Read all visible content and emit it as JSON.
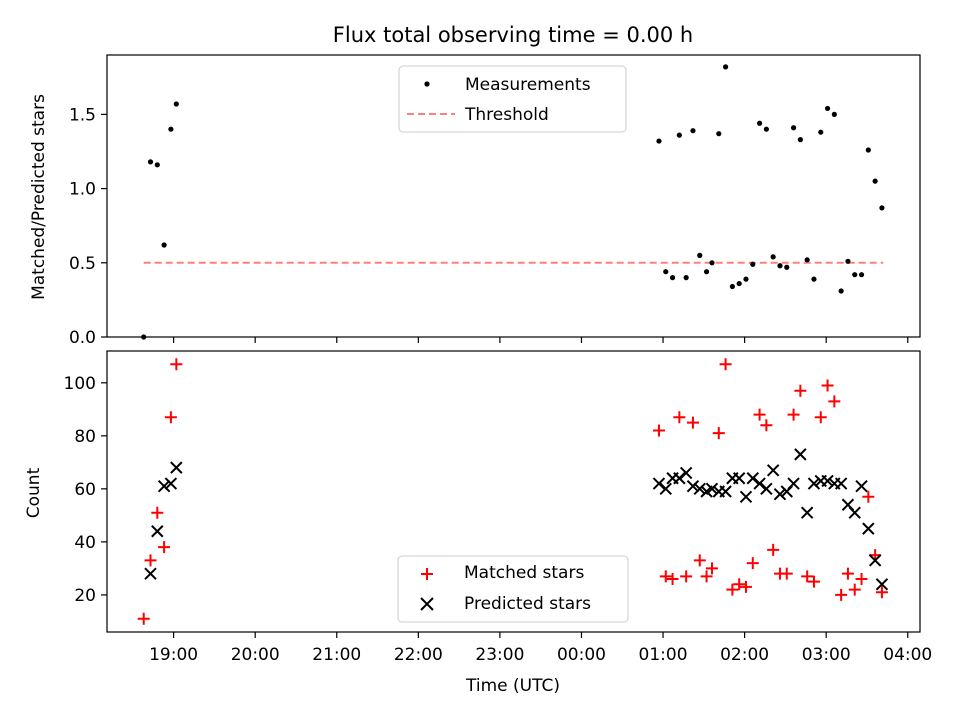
{
  "chart_data": [
    {
      "type": "scatter",
      "title": "Flux total observing time = 0.00 h",
      "ylabel": "Matched/Predicted stars",
      "xlabel": "",
      "xlim": [
        "18:11",
        "04:09"
      ],
      "ylim": [
        0,
        1.9
      ],
      "yticks": [
        "0.0",
        "0.5",
        "1.0",
        "1.5"
      ],
      "legend": {
        "position": "top-center",
        "entries": [
          "Measurements",
          "Threshold"
        ]
      },
      "threshold": {
        "name": "Threshold",
        "value": 0.5,
        "x_range": [
          "18:38",
          "03:42"
        ],
        "color": "#ff7f7f"
      },
      "series": [
        {
          "name": "Measurements",
          "color": "#000000",
          "points": [
            [
              "18:38",
              0.0
            ],
            [
              "18:43",
              1.18
            ],
            [
              "18:48",
              1.16
            ],
            [
              "18:53",
              0.62
            ],
            [
              "18:58",
              1.4
            ],
            [
              "19:02",
              1.57
            ],
            [
              "00:57",
              1.32
            ],
            [
              "01:02",
              0.44
            ],
            [
              "01:07",
              0.4
            ],
            [
              "01:12",
              1.36
            ],
            [
              "01:17",
              0.4
            ],
            [
              "01:22",
              1.39
            ],
            [
              "01:27",
              0.55
            ],
            [
              "01:32",
              0.44
            ],
            [
              "01:36",
              0.5
            ],
            [
              "01:41",
              1.37
            ],
            [
              "01:46",
              1.82
            ],
            [
              "01:51",
              0.34
            ],
            [
              "01:56",
              0.36
            ],
            [
              "02:01",
              0.39
            ],
            [
              "02:06",
              0.49
            ],
            [
              "02:11",
              1.44
            ],
            [
              "02:16",
              1.4
            ],
            [
              "02:21",
              0.54
            ],
            [
              "02:26",
              0.48
            ],
            [
              "02:31",
              0.47
            ],
            [
              "02:36",
              1.41
            ],
            [
              "02:41",
              1.33
            ],
            [
              "02:46",
              0.52
            ],
            [
              "02:51",
              0.39
            ],
            [
              "02:56",
              1.38
            ],
            [
              "03:01",
              1.54
            ],
            [
              "03:06",
              1.5
            ],
            [
              "03:11",
              0.31
            ],
            [
              "03:16",
              0.51
            ],
            [
              "03:21",
              0.42
            ],
            [
              "03:26",
              0.42
            ],
            [
              "03:31",
              1.26
            ],
            [
              "03:36",
              1.05
            ],
            [
              "03:41",
              0.87
            ]
          ]
        }
      ]
    },
    {
      "type": "scatter",
      "title": "",
      "ylabel": "Count",
      "xlabel": "Time (UTC)",
      "xlim": [
        "18:11",
        "04:09"
      ],
      "ylim": [
        6,
        112
      ],
      "yticks": [
        "20",
        "40",
        "60",
        "80",
        "100"
      ],
      "xticks": [
        "19:00",
        "20:00",
        "21:00",
        "22:00",
        "23:00",
        "00:00",
        "01:00",
        "02:00",
        "03:00",
        "04:00"
      ],
      "legend": {
        "position": "bottom-center",
        "entries": [
          "Matched stars",
          "Predicted stars"
        ]
      },
      "series": [
        {
          "name": "Matched stars",
          "marker": "+",
          "color": "#ff0000",
          "points": [
            [
              "18:38",
              11
            ],
            [
              "18:43",
              33
            ],
            [
              "18:48",
              51
            ],
            [
              "18:53",
              38
            ],
            [
              "18:58",
              87
            ],
            [
              "19:02",
              107
            ],
            [
              "00:57",
              82
            ],
            [
              "01:02",
              27
            ],
            [
              "01:07",
              26
            ],
            [
              "01:12",
              87
            ],
            [
              "01:17",
              27
            ],
            [
              "01:22",
              85
            ],
            [
              "01:27",
              33
            ],
            [
              "01:32",
              27
            ],
            [
              "01:36",
              30
            ],
            [
              "01:41",
              81
            ],
            [
              "01:46",
              107
            ],
            [
              "01:51",
              22
            ],
            [
              "01:56",
              24
            ],
            [
              "02:01",
              23
            ],
            [
              "02:06",
              32
            ],
            [
              "02:11",
              88
            ],
            [
              "02:16",
              84
            ],
            [
              "02:21",
              37
            ],
            [
              "02:26",
              28
            ],
            [
              "02:31",
              28
            ],
            [
              "02:36",
              88
            ],
            [
              "02:41",
              97
            ],
            [
              "02:46",
              27
            ],
            [
              "02:51",
              25
            ],
            [
              "02:56",
              87
            ],
            [
              "03:01",
              99
            ],
            [
              "03:06",
              93
            ],
            [
              "03:11",
              20
            ],
            [
              "03:16",
              28
            ],
            [
              "03:21",
              22
            ],
            [
              "03:26",
              26
            ],
            [
              "03:31",
              57
            ],
            [
              "03:36",
              35
            ],
            [
              "03:41",
              21
            ]
          ]
        },
        {
          "name": "Predicted stars",
          "marker": "x",
          "color": "#000000",
          "points": [
            [
              "18:43",
              28
            ],
            [
              "18:48",
              44
            ],
            [
              "18:53",
              61
            ],
            [
              "18:58",
              62
            ],
            [
              "19:02",
              68
            ],
            [
              "00:57",
              62
            ],
            [
              "01:02",
              60
            ],
            [
              "01:07",
              64
            ],
            [
              "01:12",
              64
            ],
            [
              "01:17",
              66
            ],
            [
              "01:22",
              61
            ],
            [
              "01:27",
              60
            ],
            [
              "01:32",
              59
            ],
            [
              "01:36",
              60
            ],
            [
              "01:41",
              59
            ],
            [
              "01:46",
              59
            ],
            [
              "01:51",
              64
            ],
            [
              "01:56",
              64
            ],
            [
              "02:01",
              57
            ],
            [
              "02:06",
              64
            ],
            [
              "02:11",
              62
            ],
            [
              "02:16",
              60
            ],
            [
              "02:21",
              67
            ],
            [
              "02:26",
              58
            ],
            [
              "02:31",
              59
            ],
            [
              "02:36",
              62
            ],
            [
              "02:41",
              73
            ],
            [
              "02:46",
              51
            ],
            [
              "02:51",
              62
            ],
            [
              "02:56",
              63
            ],
            [
              "03:01",
              63
            ],
            [
              "03:06",
              62
            ],
            [
              "03:11",
              62
            ],
            [
              "03:16",
              54
            ],
            [
              "03:21",
              51
            ],
            [
              "03:26",
              61
            ],
            [
              "03:31",
              45
            ],
            [
              "03:36",
              33
            ],
            [
              "03:41",
              24
            ]
          ]
        }
      ]
    }
  ]
}
